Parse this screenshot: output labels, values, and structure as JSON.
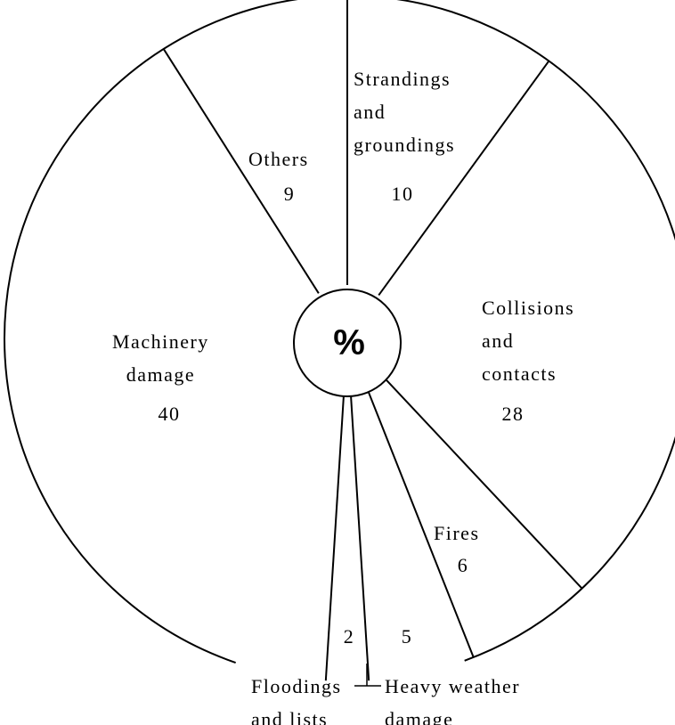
{
  "chart_data": {
    "type": "pie",
    "center_label": "%",
    "categories": [
      "Strandings\nand\ngroundings",
      "Collisions\nand\ncontacts",
      "Fires",
      "Heavy weather\ndamage",
      "Floodings\nand lists",
      "Machinery\ndamage",
      "Others"
    ],
    "values": [
      10,
      28,
      6,
      5,
      2,
      40,
      9
    ],
    "color": "#ffffff"
  }
}
